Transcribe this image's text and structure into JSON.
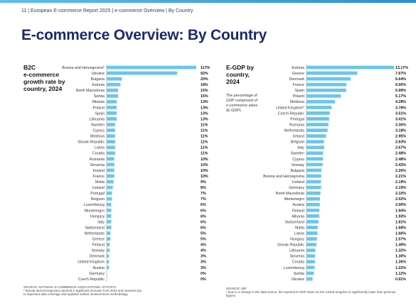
{
  "header": {
    "text": "11 | European E-commerce Report 2025 | e-commerce Overview | By Country"
  },
  "page_title": "E-commerce Overview: By Country",
  "left_panel": {
    "title_lines": [
      "B2C",
      "e-commerce",
      "growth rate by",
      "country, 2024"
    ],
    "source": "SOURCE: NATIONAL E-COMMERCE ASSOCIATIONS, STATISTA",
    "footnote_lines": [
      "* Bosnia and Herzegovina reported a significant increase from 2024 and onwards due",
      "to improved data coverage and updated market measurement methodology."
    ]
  },
  "right_panel": {
    "title_lines": [
      "E-GDP by",
      "country,",
      "2024"
    ],
    "subtitle_lines": [
      "The percentage of",
      "GDP comprised of",
      "e-commerce sales",
      "(E-GDP)"
    ],
    "source": "SOURCE: IMF",
    "footnote_lines": [
      "* Due to a change in the data source, the reported E-GDP share for the United Kingdom is significantly lower than previous figures."
    ]
  },
  "colors": {
    "bar": "#6cc5ec",
    "title": "#1b2a6b",
    "topbar": "#3aa7dd"
  },
  "chart_data": [
    {
      "type": "bar",
      "orientation": "horizontal",
      "title": "B2C e-commerce growth rate by country, 2024",
      "categories": [
        "Bosnia and Herzegovina*",
        "Ukraine",
        "Bulgaria",
        "Estonia",
        "North Macedonia",
        "Serbia",
        "Albania",
        "Poland",
        "Spain",
        "Lithuania",
        "Sweden",
        "Cyprus",
        "Moldova",
        "Slovak Republic",
        "Latvia",
        "Croatia",
        "Romania",
        "Slovenia",
        "Ireland",
        "France",
        "Malta",
        "Iceland",
        "Portugal",
        "Belgium",
        "Luxembourg",
        "Montenegro",
        "Hungary",
        "Italy",
        "Switzerland",
        "Netherlands",
        "Greece",
        "Finland",
        "Norway",
        "Denmark",
        "United Kingdom",
        "Austria",
        "Germany",
        "Czech Republic"
      ],
      "values": [
        117,
        92,
        20,
        18,
        15,
        15,
        13,
        13,
        13,
        13,
        11,
        11,
        11,
        11,
        11,
        11,
        10,
        10,
        10,
        10,
        9,
        8,
        7,
        7,
        6,
        6,
        6,
        6,
        6,
        5,
        5,
        4,
        4,
        3,
        3,
        3,
        0,
        0
      ],
      "value_labels": [
        "117%",
        "92%",
        "20%",
        "18%",
        "15%",
        "15%",
        "13%",
        "13%",
        "13%",
        "13%",
        "11%",
        "11%",
        "11%",
        "11%",
        "11%",
        "11%",
        "10%",
        "10%",
        "10%",
        "10%",
        "9%",
        "8%",
        "7%",
        "7%",
        "6%",
        "6%",
        "6%",
        "6%",
        "6%",
        "5%",
        "5%",
        "4%",
        "4%",
        "3%",
        "3%",
        "3%",
        "0%",
        "0%"
      ],
      "xlim": [
        0,
        117
      ],
      "grid": false,
      "legend": "none"
    },
    {
      "type": "bar",
      "orientation": "horizontal",
      "title": "E-GDP by country, 2024",
      "categories": [
        "Estonia",
        "Greece",
        "Denmark",
        "France",
        "Spain",
        "Poland",
        "Moldova",
        "United Kingdom*",
        "Czech Republic",
        "Portugal",
        "Romania",
        "Netherlands",
        "Ireland",
        "Belgium",
        "Italy",
        "Sweden",
        "Cyprus",
        "Norway",
        "Bulgaria",
        "Bosnia and Herzegovina",
        "Iceland",
        "Germany",
        "North Macedonia",
        "Montenegro",
        "Austria",
        "Finland",
        "Albania",
        "Switzerland",
        "Malta",
        "Latvia",
        "Hungary",
        "Slovak Republic",
        "Lithuania",
        "Slovenia",
        "Croatia",
        "Luxembourg",
        "Serbia",
        "Ukraine"
      ],
      "values": [
        13.17,
        7.67,
        6.64,
        6.0,
        5.99,
        5.17,
        4.28,
        3.78,
        3.51,
        3.41,
        3.3,
        3.18,
        2.95,
        2.63,
        2.67,
        2.48,
        2.48,
        2.43,
        2.26,
        2.21,
        2.19,
        2.19,
        2.1,
        2.02,
        2.0,
        1.94,
        1.93,
        1.81,
        1.68,
        1.66,
        1.57,
        1.49,
        1.32,
        1.3,
        1.26,
        1.22,
        1.12,
        0.91
      ],
      "value_labels": [
        "13.17%",
        "7.67%",
        "6.64%",
        "6.00%",
        "5.99%",
        "5.17%",
        "4.28%",
        "3.78%",
        "3.51%",
        "3.41%",
        "3.30%",
        "3.18%",
        "2.95%",
        "2.63%",
        "2.67%",
        "2.48%",
        "2.48%",
        "2.43%",
        "2.26%",
        "2.21%",
        "2.19%",
        "2.19%",
        "2.10%",
        "2.02%",
        "2.00%",
        "1.94%",
        "1.93%",
        "1.81%",
        "1.68%",
        "1.66%",
        "1.57%",
        "1.49%",
        "1.32%",
        "1.30%",
        "1.26%",
        "1.22%",
        "1.12%",
        "0.91%"
      ],
      "xlim": [
        0,
        13.17
      ],
      "grid": false,
      "legend": "none"
    }
  ]
}
